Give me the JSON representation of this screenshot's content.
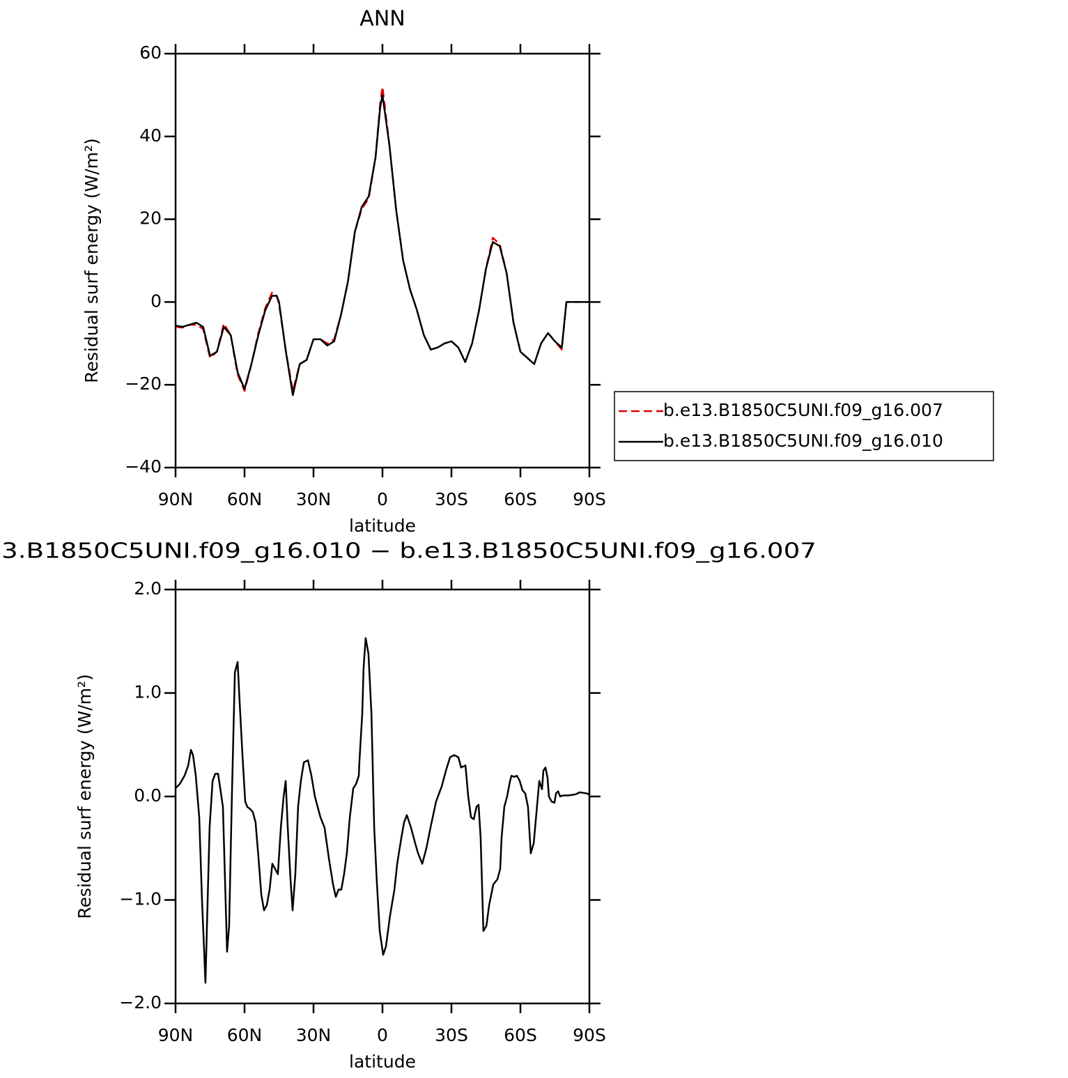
{
  "chart_data": [
    {
      "type": "line",
      "title": "ANN",
      "xlabel": "latitude",
      "ylabel": "Residual surf energy (W/m²)",
      "x": [
        90,
        87,
        84,
        81,
        78,
        75,
        72,
        69,
        66,
        63,
        60,
        57,
        54,
        51,
        48,
        46,
        45,
        42,
        39,
        36,
        33,
        30,
        27,
        24,
        21,
        18,
        15,
        12,
        9,
        6,
        3,
        1,
        0,
        -3,
        -6,
        -9,
        -12,
        -15,
        -18,
        -21,
        -24,
        -27,
        -30,
        -33,
        -36,
        -39,
        -42,
        -45,
        -48,
        -51,
        -54,
        -57,
        -60,
        -63,
        -66,
        -69,
        -72,
        -75,
        -78,
        -80,
        -84,
        -90
      ],
      "series": [
        {
          "name": "b.e13.B1850C5UNI.f09_g16.007",
          "color": "#e00000",
          "dash": true,
          "values": [
            -6,
            -6.2,
            -5.5,
            -5.5,
            -6.5,
            -13.5,
            -12,
            -5.2,
            -8,
            -17.5,
            -21.5,
            -15,
            -7.5,
            -1.5,
            2.3,
            1.5,
            -0.5,
            -12,
            -21.5,
            -15,
            -14,
            -9,
            -9,
            -10,
            -9,
            -3,
            5,
            17,
            22.5,
            25,
            35,
            48,
            52,
            38,
            22,
            10,
            3,
            -2,
            -8,
            -11.5,
            -11,
            -10,
            -9.5,
            -11,
            -14.5,
            -10,
            -2,
            8,
            15.5,
            14,
            7,
            -5,
            -12,
            -13.5,
            -15,
            -10,
            -7.5,
            -9.5,
            -11.5,
            0,
            0,
            0
          ]
        },
        {
          "name": "b.e13.B1850C5UNI.f09_g16.010",
          "color": "#000000",
          "dash": false,
          "values": [
            -5.7,
            -6,
            -5.5,
            -5,
            -6,
            -13,
            -12,
            -6,
            -8,
            -17,
            -21,
            -15,
            -8,
            -2,
            1.5,
            1.5,
            0,
            -12,
            -22.5,
            -15,
            -14,
            -9,
            -9,
            -10.5,
            -9.5,
            -3,
            5,
            17,
            23,
            25.5,
            35,
            47,
            50,
            38,
            22,
            10,
            3,
            -2,
            -8,
            -11.5,
            -11,
            -10,
            -9.5,
            -11,
            -14.5,
            -10,
            -2,
            8,
            14.5,
            13.5,
            7,
            -5,
            -12,
            -13.5,
            -15,
            -10,
            -7.5,
            -9.5,
            -11,
            0,
            0,
            0
          ]
        }
      ],
      "xlim": [
        90,
        -90
      ],
      "xticks": [
        {
          "value": 90,
          "label": "90N"
        },
        {
          "value": 60,
          "label": "60N"
        },
        {
          "value": 30,
          "label": "30N"
        },
        0,
        {
          "value": -30,
          "label": "30S"
        },
        {
          "value": -60,
          "label": "60S"
        },
        {
          "value": -90,
          "label": "90S"
        }
      ],
      "ylim": [
        -40,
        60
      ],
      "yticks": [
        60,
        40,
        20,
        0,
        {
          "value": -20,
          "label": "−20"
        },
        {
          "value": -40,
          "label": "−40"
        }
      ]
    },
    {
      "type": "line",
      "title": "3.B1850C5UNI.f09_g16.010 − b.e13.B1850C5UNI.f09_g16.007",
      "xlabel": "latitude",
      "ylabel": "Residual surf energy (W/m²)",
      "x": [
        90,
        88.2,
        86.1,
        84.5,
        83.3,
        82.4,
        81.2,
        79.7,
        78.5,
        77,
        75.2,
        73.9,
        72.7,
        71.5,
        69.4,
        68.5,
        67.6,
        66.7,
        65.5,
        64.2,
        63,
        62.1,
        60.9,
        59.7,
        58.8,
        57.6,
        56.4,
        55.2,
        53.9,
        52.7,
        51.5,
        50.3,
        49.1,
        47.9,
        46.7,
        45.5,
        44.2,
        43,
        42.1,
        41.2,
        40,
        39.1,
        37.9,
        36.7,
        35.5,
        34.2,
        32.4,
        30.9,
        29.4,
        28.2,
        27,
        25.2,
        23.3,
        21.5,
        20.3,
        19.1,
        17.9,
        16.7,
        15.5,
        14.2,
        12.7,
        11.5,
        10.3,
        10,
        8.8,
        8.2,
        7.3,
        6.1,
        4.8,
        3.6,
        2.4,
        1.2,
        -0.3,
        -1.5,
        -3.3,
        -5.2,
        -6.4,
        -8.2,
        -9.4,
        -10.6,
        -12.4,
        -14.2,
        -15.5,
        -17.3,
        -19.1,
        -20.9,
        -23.3,
        -25.8,
        -27.6,
        -29.4,
        -31.2,
        -33,
        -34.2,
        -36.1,
        -37.3,
        -38.5,
        -39.7,
        -40.9,
        -41.8,
        -42.7,
        -43.9,
        -45.2,
        -46.4,
        -48.2,
        -50,
        -51.2,
        -51.8,
        -53,
        -54.2,
        -55.5,
        -56.1,
        -57.3,
        -58.5,
        -59.7,
        -60.9,
        -62.1,
        -63.3,
        -64.5,
        -65.8,
        -66.4,
        -67.6,
        -68.2,
        -69.4,
        -70,
        -70.9,
        -71.8,
        -72.4,
        -73.6,
        -74.8,
        -75.5,
        -76.4,
        -77.3,
        -78.5,
        -80.9,
        -83.9,
        -85.8,
        -88.8,
        -90
      ],
      "series": [
        {
          "color": "#000000",
          "dash": false,
          "values": [
            0.08,
            0.12,
            0.2,
            0.3,
            0.45,
            0.4,
            0.2,
            -0.2,
            -1.0,
            -1.8,
            -0.3,
            0.15,
            0.22,
            0.22,
            -0.1,
            -0.8,
            -1.5,
            -1.25,
            0.0,
            1.2,
            1.3,
            0.9,
            0.4,
            -0.05,
            -0.1,
            -0.12,
            -0.15,
            -0.25,
            -0.6,
            -0.95,
            -1.1,
            -1.05,
            -0.9,
            -0.65,
            -0.7,
            -0.75,
            -0.3,
            0.0,
            0.15,
            -0.3,
            -0.8,
            -1.1,
            -0.75,
            -0.1,
            0.15,
            0.33,
            0.35,
            0.2,
            0.0,
            -0.1,
            -0.2,
            -0.3,
            -0.6,
            -0.85,
            -0.97,
            -0.9,
            -0.9,
            -0.75,
            -0.55,
            -0.2,
            0.08,
            0.12,
            0.2,
            0.35,
            0.8,
            1.25,
            1.53,
            1.38,
            0.8,
            -0.3,
            -0.85,
            -1.3,
            -1.53,
            -1.45,
            -1.15,
            -0.9,
            -0.65,
            -0.4,
            -0.25,
            -0.18,
            -0.3,
            -0.45,
            -0.55,
            -0.65,
            -0.5,
            -0.3,
            -0.05,
            0.1,
            0.25,
            0.38,
            0.4,
            0.38,
            0.28,
            0.3,
            0.0,
            -0.2,
            -0.22,
            -0.1,
            -0.08,
            -0.4,
            -1.3,
            -1.25,
            -1.05,
            -0.85,
            -0.8,
            -0.7,
            -0.4,
            -0.1,
            0.0,
            0.15,
            0.2,
            0.19,
            0.2,
            0.15,
            0.06,
            0.03,
            -0.1,
            -0.55,
            -0.45,
            -0.3,
            0.0,
            0.15,
            0.07,
            0.25,
            0.28,
            0.18,
            0.0,
            -0.05,
            -0.06,
            0.03,
            0.05,
            0.0,
            0.01,
            0.01,
            0.02,
            0.04,
            0.03,
            0.02
          ]
        }
      ],
      "xlim": [
        90,
        -90
      ],
      "xticks": [
        {
          "value": 90,
          "label": "90N"
        },
        {
          "value": 60,
          "label": "60N"
        },
        {
          "value": 30,
          "label": "30N"
        },
        0,
        {
          "value": -30,
          "label": "30S"
        },
        {
          "value": -60,
          "label": "60S"
        },
        {
          "value": -90,
          "label": "90S"
        }
      ],
      "ylim": [
        -2,
        2
      ],
      "yticks": [
        {
          "value": 2,
          "label": "2.0"
        },
        {
          "value": 1,
          "label": "1.0"
        },
        {
          "value": 0,
          "label": "0.0"
        },
        {
          "value": -1,
          "label": "−1.0"
        },
        {
          "value": -2,
          "label": "−2.0"
        }
      ]
    }
  ]
}
